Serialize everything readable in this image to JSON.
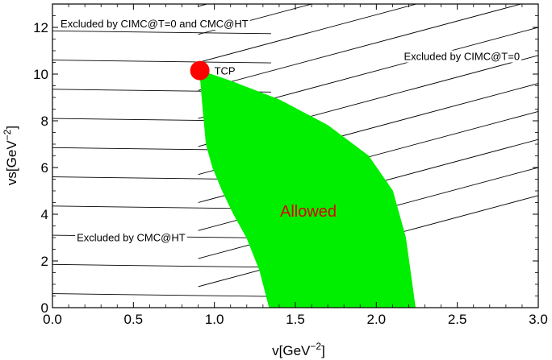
{
  "chart_data": {
    "type": "area",
    "title": "",
    "xlabel": "v[GeV",
    "xlabel_sup": "−2",
    "xlabel_end": "]",
    "ylabel": "vs[GeV",
    "ylabel_sup": "−2",
    "ylabel_end": "]",
    "xlim": [
      0,
      3.0
    ],
    "ylim": [
      0,
      13
    ],
    "x_ticks": [
      "0.0",
      "0.5",
      "1.0",
      "1.5",
      "2.0",
      "2.5",
      "3.0"
    ],
    "y_ticks": [
      "0",
      "2",
      "4",
      "6",
      "8",
      "10",
      "12"
    ],
    "grid": false,
    "allowed_region": {
      "label": "Allowed",
      "fill_color": "#00ee00",
      "label_color": "#dd0000",
      "label_position": [
        1.58,
        3.9
      ],
      "left_boundary": [
        [
          0.91,
          10.15
        ],
        [
          0.93,
          8.5
        ],
        [
          0.95,
          7.0
        ],
        [
          0.99,
          6.0
        ],
        [
          1.05,
          5.0
        ],
        [
          1.12,
          4.0
        ],
        [
          1.2,
          3.0
        ],
        [
          1.28,
          1.6
        ],
        [
          1.34,
          0.0
        ]
      ],
      "right_boundary": [
        [
          0.91,
          10.15
        ],
        [
          1.1,
          9.7
        ],
        [
          1.4,
          8.9
        ],
        [
          1.7,
          7.8
        ],
        [
          1.95,
          6.5
        ],
        [
          2.1,
          5.0
        ],
        [
          2.18,
          3.0
        ],
        [
          2.22,
          1.0
        ],
        [
          2.24,
          0.0
        ]
      ]
    },
    "tcp_point": {
      "label": "TCP",
      "x": 0.91,
      "y": 10.15,
      "color": "#ff0000"
    },
    "hatched_regions": [
      {
        "label": "Excluded by CIMC@T=0 and CMC@HT",
        "label_position": [
          0.05,
          12.0
        ]
      },
      {
        "label": "Excluded by CIMC@T=0",
        "label_position": [
          2.17,
          10.6
        ]
      },
      {
        "label": "Excluded by CMC@HT",
        "label_position": [
          0.15,
          2.85
        ]
      }
    ],
    "colors": {
      "allowed": "#00ee00",
      "tcp": "#ff0000",
      "allowed_label": "#dd0000",
      "lines": "#000000"
    }
  }
}
